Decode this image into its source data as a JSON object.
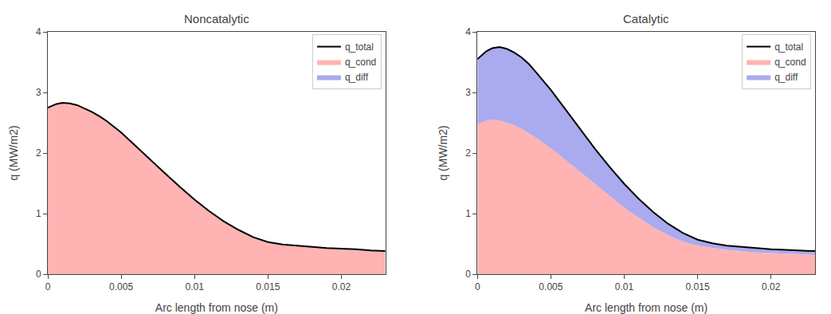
{
  "chart_data": [
    {
      "type": "area",
      "title": "Noncatalytic",
      "x_label": "Arc length from nose (m)",
      "y_label": "q (MW/m2)",
      "x": [
        0.0,
        0.0003,
        0.0006,
        0.001,
        0.0015,
        0.002,
        0.0025,
        0.003,
        0.0035,
        0.004,
        0.005,
        0.006,
        0.007,
        0.008,
        0.009,
        0.01,
        0.011,
        0.012,
        0.013,
        0.014,
        0.015,
        0.016,
        0.017,
        0.018,
        0.019,
        0.02,
        0.021,
        0.022,
        0.023
      ],
      "series": [
        {
          "name": "q_total",
          "type": "line",
          "color": "black",
          "values": [
            2.75,
            2.78,
            2.81,
            2.83,
            2.82,
            2.79,
            2.74,
            2.68,
            2.61,
            2.53,
            2.34,
            2.11,
            1.88,
            1.66,
            1.44,
            1.23,
            1.04,
            0.87,
            0.73,
            0.61,
            0.53,
            0.49,
            0.47,
            0.45,
            0.43,
            0.42,
            0.41,
            0.39,
            0.38
          ]
        },
        {
          "name": "q_cond",
          "type": "area",
          "color": "#ffb3b3",
          "values": [
            2.74,
            2.77,
            2.8,
            2.82,
            2.81,
            2.78,
            2.73,
            2.67,
            2.6,
            2.52,
            2.33,
            2.1,
            1.87,
            1.65,
            1.43,
            1.22,
            1.03,
            0.86,
            0.72,
            0.6,
            0.52,
            0.48,
            0.46,
            0.44,
            0.42,
            0.41,
            0.4,
            0.38,
            0.37
          ]
        },
        {
          "name": "q_diff",
          "type": "area",
          "color": "#aaaaee",
          "values": [
            0.01,
            0.01,
            0.01,
            0.01,
            0.01,
            0.01,
            0.01,
            0.01,
            0.01,
            0.01,
            0.01,
            0.01,
            0.01,
            0.01,
            0.01,
            0.01,
            0.01,
            0.01,
            0.01,
            0.01,
            0.01,
            0.01,
            0.01,
            0.01,
            0.01,
            0.01,
            0.01,
            0.01,
            0.01
          ]
        }
      ],
      "stacked": true,
      "xlim": [
        0,
        0.023
      ],
      "xticks": [
        0,
        0.005,
        0.01,
        0.015,
        0.02
      ],
      "ylim": [
        0,
        4.0
      ],
      "yticks": [
        0,
        1,
        2,
        3,
        4
      ],
      "grid": false,
      "legend": "upper right"
    },
    {
      "type": "area",
      "title": "Catalytic",
      "x_label": "Arc length from nose (m)",
      "y_label": "q (MW/m2)",
      "x": [
        0.0,
        0.0003,
        0.0006,
        0.001,
        0.0015,
        0.002,
        0.0025,
        0.003,
        0.0035,
        0.004,
        0.005,
        0.006,
        0.007,
        0.008,
        0.009,
        0.01,
        0.011,
        0.012,
        0.013,
        0.014,
        0.015,
        0.016,
        0.017,
        0.018,
        0.019,
        0.02,
        0.021,
        0.022,
        0.023
      ],
      "series": [
        {
          "name": "q_total",
          "type": "line",
          "color": "black",
          "values": [
            3.55,
            3.62,
            3.68,
            3.73,
            3.75,
            3.72,
            3.66,
            3.58,
            3.47,
            3.33,
            3.04,
            2.72,
            2.39,
            2.07,
            1.77,
            1.49,
            1.24,
            1.02,
            0.83,
            0.68,
            0.57,
            0.51,
            0.47,
            0.45,
            0.43,
            0.41,
            0.4,
            0.39,
            0.38
          ]
        },
        {
          "name": "q_cond",
          "type": "area",
          "color": "#ffb3b3",
          "values": [
            2.48,
            2.51,
            2.53,
            2.55,
            2.54,
            2.5,
            2.46,
            2.4,
            2.33,
            2.25,
            2.08,
            1.89,
            1.69,
            1.49,
            1.29,
            1.1,
            0.93,
            0.77,
            0.64,
            0.54,
            0.47,
            0.43,
            0.4,
            0.38,
            0.36,
            0.35,
            0.34,
            0.33,
            0.32
          ]
        },
        {
          "name": "q_diff",
          "type": "area",
          "color": "#aaaaee",
          "values": [
            1.07,
            1.11,
            1.15,
            1.18,
            1.21,
            1.22,
            1.2,
            1.18,
            1.14,
            1.08,
            0.96,
            0.83,
            0.7,
            0.58,
            0.48,
            0.39,
            0.31,
            0.25,
            0.19,
            0.14,
            0.1,
            0.08,
            0.07,
            0.07,
            0.07,
            0.06,
            0.06,
            0.06,
            0.06
          ]
        }
      ],
      "stacked": true,
      "xlim": [
        0,
        0.023
      ],
      "xticks": [
        0,
        0.005,
        0.01,
        0.015,
        0.02
      ],
      "ylim": [
        0,
        4.0
      ],
      "yticks": [
        0,
        1,
        2,
        3,
        4
      ],
      "grid": false,
      "legend": "upper right"
    }
  ]
}
